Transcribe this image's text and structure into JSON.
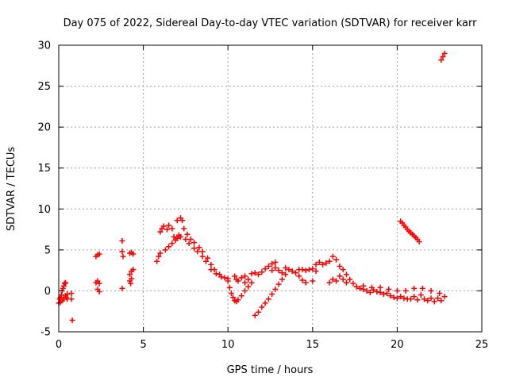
{
  "chart_data": {
    "type": "scatter",
    "title": "Day 075 of 2022, Sidereal Day-to-day VTEC variation (SDTVAR) for receiver karr",
    "xlabel": "GPS time / hours",
    "ylabel": "SDTVAR / TECUs",
    "xlim": [
      0,
      25
    ],
    "ylim": [
      -5,
      30
    ],
    "xticks": [
      0,
      5,
      10,
      15,
      20,
      25
    ],
    "yticks": [
      -5,
      0,
      5,
      10,
      15,
      20,
      25,
      30
    ],
    "grid": true,
    "marker": "+",
    "color": "#ff0000",
    "series": [
      {
        "name": "SDTVAR",
        "points": [
          [
            0.0,
            -1.5
          ],
          [
            0.05,
            -1.0
          ],
          [
            0.1,
            -0.8
          ],
          [
            0.1,
            -1.4
          ],
          [
            0.15,
            -0.5
          ],
          [
            0.2,
            0.0
          ],
          [
            0.2,
            -1.2
          ],
          [
            0.25,
            0.3
          ],
          [
            0.3,
            0.6
          ],
          [
            0.3,
            -1.0
          ],
          [
            0.35,
            0.9
          ],
          [
            0.4,
            1.0
          ],
          [
            0.4,
            -0.6
          ],
          [
            0.45,
            -0.8
          ],
          [
            0.5,
            -1.0
          ],
          [
            0.5,
            -0.4
          ],
          [
            0.75,
            -0.3
          ],
          [
            0.75,
            -1.0
          ],
          [
            0.8,
            -3.6
          ],
          [
            2.2,
            4.2
          ],
          [
            2.3,
            4.4
          ],
          [
            2.4,
            4.5
          ],
          [
            2.2,
            1.0
          ],
          [
            2.3,
            1.2
          ],
          [
            2.4,
            0.9
          ],
          [
            2.3,
            0.2
          ],
          [
            2.4,
            -0.1
          ],
          [
            3.75,
            6.1
          ],
          [
            3.75,
            4.8
          ],
          [
            3.8,
            4.2
          ],
          [
            3.75,
            0.3
          ],
          [
            4.2,
            4.6
          ],
          [
            4.3,
            4.7
          ],
          [
            4.4,
            4.5
          ],
          [
            4.2,
            2.0
          ],
          [
            4.3,
            2.4
          ],
          [
            4.4,
            2.6
          ],
          [
            4.2,
            1.2
          ],
          [
            4.3,
            1.5
          ],
          [
            4.25,
            0.9
          ],
          [
            5.8,
            3.6
          ],
          [
            5.9,
            4.2
          ],
          [
            6.0,
            4.6
          ],
          [
            6.0,
            7.2
          ],
          [
            6.1,
            7.6
          ],
          [
            6.2,
            7.9
          ],
          [
            6.3,
            5.0
          ],
          [
            6.4,
            7.5
          ],
          [
            6.5,
            5.4
          ],
          [
            6.5,
            8.0
          ],
          [
            6.7,
            5.8
          ],
          [
            6.7,
            7.6
          ],
          [
            6.8,
            6.6
          ],
          [
            6.9,
            6.2
          ],
          [
            7.0,
            8.6
          ],
          [
            7.0,
            6.4
          ],
          [
            7.1,
            6.8
          ],
          [
            7.2,
            8.9
          ],
          [
            7.2,
            6.6
          ],
          [
            7.3,
            8.6
          ],
          [
            7.4,
            7.6
          ],
          [
            7.5,
            6.3
          ],
          [
            7.6,
            6.9
          ],
          [
            7.7,
            5.8
          ],
          [
            7.8,
            6.3
          ],
          [
            8.0,
            5.2
          ],
          [
            8.0,
            5.9
          ],
          [
            8.2,
            4.8
          ],
          [
            8.3,
            5.3
          ],
          [
            8.5,
            4.2
          ],
          [
            8.5,
            4.8
          ],
          [
            8.7,
            3.6
          ],
          [
            8.8,
            4.0
          ],
          [
            9.0,
            3.2
          ],
          [
            9.0,
            2.6
          ],
          [
            9.2,
            2.6
          ],
          [
            9.3,
            2.1
          ],
          [
            9.5,
            2.0
          ],
          [
            9.6,
            1.7
          ],
          [
            9.8,
            1.6
          ],
          [
            10.0,
            1.5
          ],
          [
            10.0,
            1.2
          ],
          [
            10.1,
            0.4
          ],
          [
            10.2,
            -0.3
          ],
          [
            10.3,
            -0.8
          ],
          [
            10.4,
            -1.2
          ],
          [
            10.5,
            -1.3
          ],
          [
            10.6,
            -1.1
          ],
          [
            10.8,
            -0.6
          ],
          [
            10.4,
            1.8
          ],
          [
            10.5,
            1.4
          ],
          [
            10.6,
            1.2
          ],
          [
            10.8,
            1.6
          ],
          [
            11.0,
            1.0
          ],
          [
            11.0,
            1.8
          ],
          [
            11.2,
            1.4
          ],
          [
            11.0,
            0.0
          ],
          [
            11.2,
            0.5
          ],
          [
            11.4,
            1.0
          ],
          [
            11.4,
            2.1
          ],
          [
            11.6,
            2.2
          ],
          [
            11.8,
            2.0
          ],
          [
            12.0,
            2.3
          ],
          [
            11.6,
            -3.0
          ],
          [
            11.8,
            -2.6
          ],
          [
            12.0,
            -2.0
          ],
          [
            12.2,
            -1.5
          ],
          [
            12.4,
            -1.0
          ],
          [
            12.6,
            -0.4
          ],
          [
            12.8,
            0.2
          ],
          [
            13.0,
            0.8
          ],
          [
            13.2,
            1.4
          ],
          [
            13.4,
            2.0
          ],
          [
            12.2,
            2.7
          ],
          [
            12.4,
            3.0
          ],
          [
            12.6,
            3.3
          ],
          [
            12.8,
            3.5
          ],
          [
            12.6,
            2.5
          ],
          [
            12.8,
            2.8
          ],
          [
            13.0,
            2.5
          ],
          [
            13.2,
            2.2
          ],
          [
            13.4,
            2.8
          ],
          [
            13.6,
            2.6
          ],
          [
            13.8,
            2.4
          ],
          [
            14.0,
            2.2
          ],
          [
            14.2,
            1.8
          ],
          [
            14.4,
            1.3
          ],
          [
            14.6,
            1.0
          ],
          [
            14.8,
            2.6
          ],
          [
            15.0,
            2.7
          ],
          [
            15.0,
            1.2
          ],
          [
            14.2,
            2.6
          ],
          [
            14.4,
            2.6
          ],
          [
            14.6,
            2.5
          ],
          [
            15.2,
            2.4
          ],
          [
            15.2,
            3.2
          ],
          [
            15.4,
            3.5
          ],
          [
            15.6,
            3.2
          ],
          [
            15.8,
            3.4
          ],
          [
            16.0,
            3.6
          ],
          [
            16.2,
            4.2
          ],
          [
            16.4,
            3.8
          ],
          [
            16.6,
            3.0
          ],
          [
            16.8,
            2.6
          ],
          [
            17.0,
            2.0
          ],
          [
            16.0,
            1.0
          ],
          [
            16.2,
            1.4
          ],
          [
            16.4,
            1.2
          ],
          [
            16.6,
            1.8
          ],
          [
            16.8,
            1.4
          ],
          [
            17.0,
            1.0
          ],
          [
            17.2,
            1.4
          ],
          [
            17.4,
            0.9
          ],
          [
            17.6,
            0.5
          ],
          [
            17.8,
            0.3
          ],
          [
            18.0,
            0.2
          ],
          [
            18.2,
            0.0
          ],
          [
            18.4,
            -0.2
          ],
          [
            18.6,
            0.1
          ],
          [
            18.8,
            -0.1
          ],
          [
            19.0,
            -0.2
          ],
          [
            19.2,
            -0.4
          ],
          [
            19.4,
            -0.3
          ],
          [
            19.6,
            -0.6
          ],
          [
            19.8,
            -0.8
          ],
          [
            20.0,
            -0.9
          ],
          [
            20.2,
            -0.7
          ],
          [
            20.4,
            -0.9
          ],
          [
            20.6,
            -1.0
          ],
          [
            20.8,
            -1.0
          ],
          [
            21.0,
            -0.7
          ],
          [
            21.2,
            -1.1
          ],
          [
            21.4,
            -0.5
          ],
          [
            21.6,
            -1.0
          ],
          [
            21.8,
            -1.2
          ],
          [
            22.0,
            -0.9
          ],
          [
            22.2,
            -1.3
          ],
          [
            22.4,
            -0.9
          ],
          [
            22.6,
            -1.2
          ],
          [
            22.8,
            -0.7
          ],
          [
            18.0,
            0.6
          ],
          [
            18.5,
            0.4
          ],
          [
            19.0,
            0.4
          ],
          [
            19.5,
            0.2
          ],
          [
            20.0,
            0.0
          ],
          [
            20.5,
            0.0
          ],
          [
            21.0,
            0.3
          ],
          [
            21.5,
            0.3
          ],
          [
            22.0,
            0.0
          ],
          [
            22.5,
            -0.3
          ],
          [
            20.2,
            8.5
          ],
          [
            20.3,
            8.3
          ],
          [
            20.4,
            8.0
          ],
          [
            20.5,
            7.8
          ],
          [
            20.6,
            7.5
          ],
          [
            20.7,
            7.3
          ],
          [
            20.8,
            7.1
          ],
          [
            20.9,
            6.9
          ],
          [
            21.0,
            6.7
          ],
          [
            21.1,
            6.5
          ],
          [
            21.2,
            6.3
          ],
          [
            21.3,
            6.0
          ],
          [
            22.6,
            28.2
          ],
          [
            22.7,
            28.6
          ],
          [
            22.8,
            29.0
          ]
        ]
      }
    ]
  }
}
